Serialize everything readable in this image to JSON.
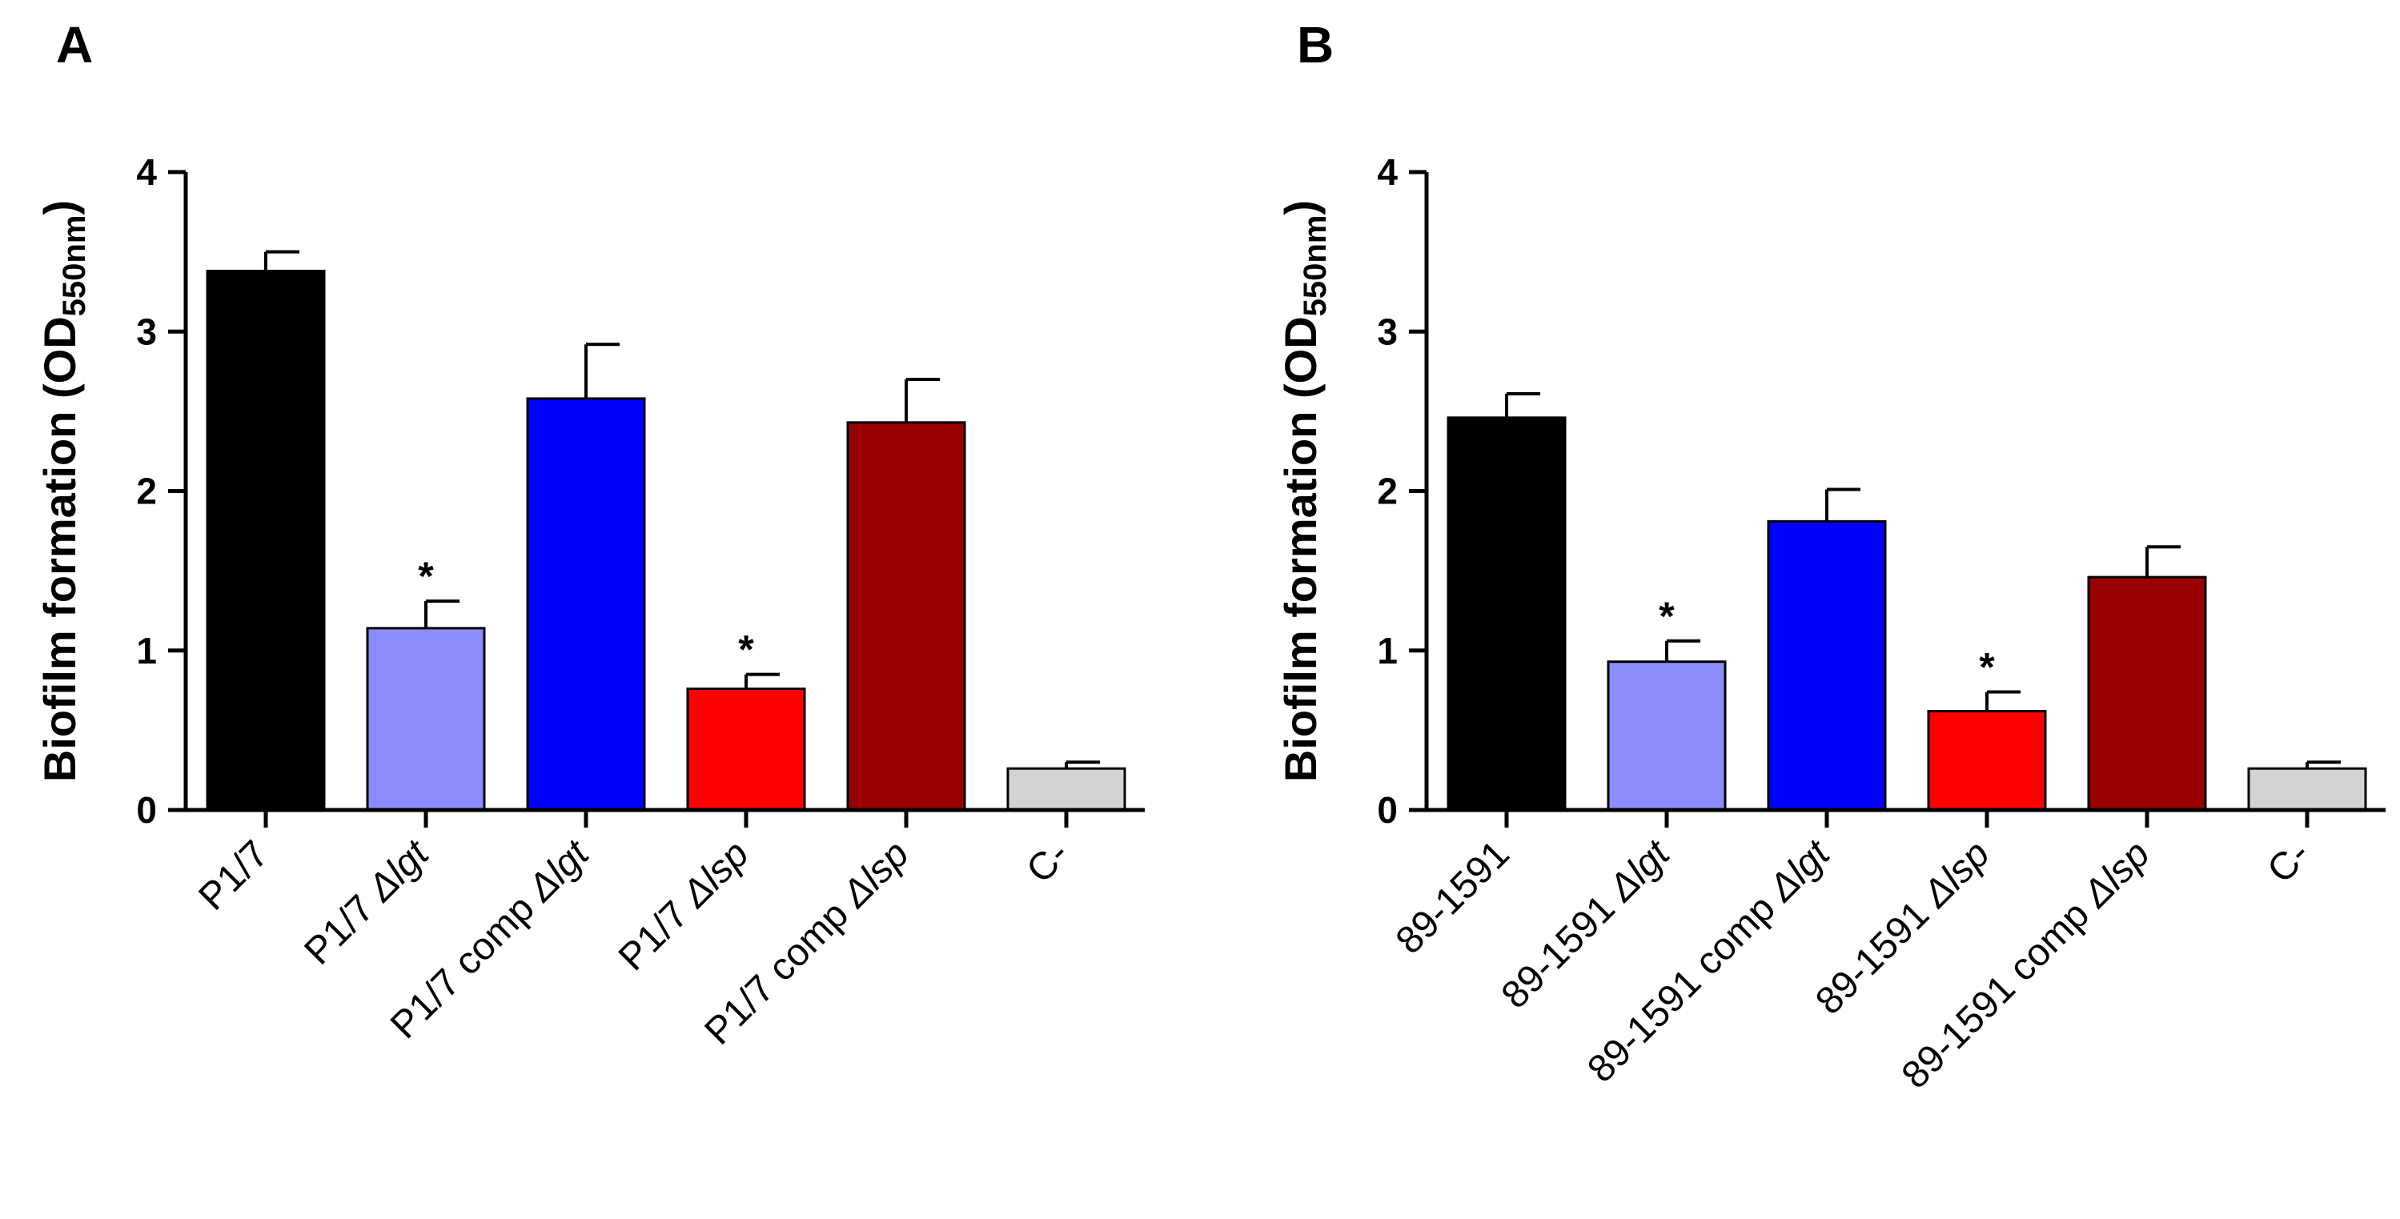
{
  "chart_data": [
    {
      "type": "bar",
      "panel": "A",
      "ylabel": "Biofilm formation (OD",
      "ylabel_sub": "550nm",
      "ylabel_end": ")",
      "xlabel": "",
      "ylim": [
        0,
        4
      ],
      "yticks": [
        0,
        1,
        2,
        3,
        4
      ],
      "grid": false,
      "categories": [
        {
          "parts": [
            {
              "t": "P1/7",
              "i": false
            }
          ]
        },
        {
          "parts": [
            {
              "t": "P1/7 ",
              "i": false
            },
            {
              "t": "Δlgt",
              "i": true
            }
          ]
        },
        {
          "parts": [
            {
              "t": "P1/7 comp ",
              "i": false
            },
            {
              "t": "Δlgt",
              "i": true
            }
          ]
        },
        {
          "parts": [
            {
              "t": "P1/7 ",
              "i": false
            },
            {
              "t": "Δlsp",
              "i": true
            }
          ]
        },
        {
          "parts": [
            {
              "t": "P1/7 comp ",
              "i": false
            },
            {
              "t": "Δlsp",
              "i": true
            }
          ]
        },
        {
          "parts": [
            {
              "t": "C-",
              "i": false
            }
          ]
        }
      ],
      "values": [
        3.38,
        1.14,
        2.58,
        0.76,
        2.43,
        0.26
      ],
      "errors": [
        0.12,
        0.17,
        0.34,
        0.09,
        0.27,
        0.04
      ],
      "significance": [
        "",
        "*",
        "",
        "*",
        "",
        ""
      ],
      "colors": [
        "#000000",
        "#8c8cff",
        "#0000ff",
        "#ff0000",
        "#990000",
        "#d3d3d3"
      ]
    },
    {
      "type": "bar",
      "panel": "B",
      "ylabel": "Biofilm formation (OD",
      "ylabel_sub": "550nm",
      "ylabel_end": ")",
      "xlabel": "",
      "ylim": [
        0,
        4
      ],
      "yticks": [
        0,
        1,
        2,
        3,
        4
      ],
      "grid": false,
      "categories": [
        {
          "parts": [
            {
              "t": "89-1591",
              "i": false
            }
          ]
        },
        {
          "parts": [
            {
              "t": "89-1591 ",
              "i": false
            },
            {
              "t": "Δlgt",
              "i": true
            }
          ]
        },
        {
          "parts": [
            {
              "t": "89-1591 comp ",
              "i": false
            },
            {
              "t": "Δlgt",
              "i": true
            }
          ]
        },
        {
          "parts": [
            {
              "t": "89-1591 ",
              "i": false
            },
            {
              "t": "Δlsp",
              "i": true
            }
          ]
        },
        {
          "parts": [
            {
              "t": "89-1591 comp ",
              "i": false
            },
            {
              "t": "Δlsp",
              "i": true
            }
          ]
        },
        {
          "parts": [
            {
              "t": "C-",
              "i": false
            }
          ]
        }
      ],
      "values": [
        2.46,
        0.93,
        1.81,
        0.62,
        1.46,
        0.26
      ],
      "errors": [
        0.15,
        0.13,
        0.2,
        0.12,
        0.19,
        0.04
      ],
      "significance": [
        "",
        "*",
        "",
        "*",
        "",
        ""
      ],
      "colors": [
        "#000000",
        "#8c8cff",
        "#0000ff",
        "#ff0000",
        "#990000",
        "#d3d3d3"
      ]
    }
  ]
}
